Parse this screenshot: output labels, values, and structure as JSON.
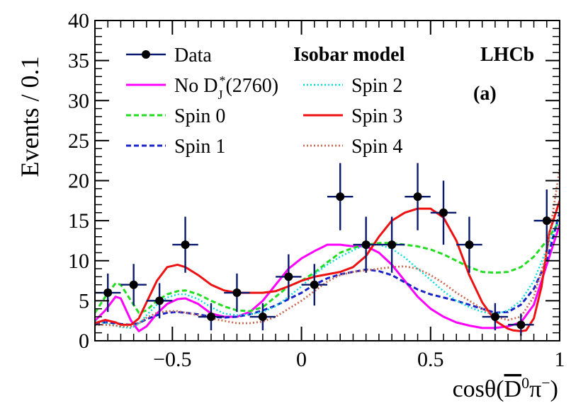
{
  "chart_data": {
    "type": "line",
    "title": "",
    "experiment_label": "LHCb",
    "model_label": "Isobar model",
    "panel_label": "(a)",
    "ylabel": "Events / 0.1",
    "xlabel_parts": {
      "pre": "cosθ(",
      "dbar": "D",
      "dbar_sup": "0",
      "pi": "π",
      "pi_sup": "−",
      "post": ")"
    },
    "xlim": [
      -0.8,
      1.0
    ],
    "ylim": [
      0,
      40
    ],
    "x_ticks": [
      {
        "value": -0.5,
        "label": "−0.5"
      },
      {
        "value": 0,
        "label": "0"
      },
      {
        "value": 0.5,
        "label": "0.5"
      },
      {
        "value": 1,
        "label": "1"
      }
    ],
    "y_ticks": [
      {
        "value": 0,
        "label": "0"
      },
      {
        "value": 5,
        "label": "5"
      },
      {
        "value": 10,
        "label": "10"
      },
      {
        "value": 15,
        "label": "15"
      },
      {
        "value": 20,
        "label": "20"
      },
      {
        "value": 25,
        "label": "25"
      },
      {
        "value": 30,
        "label": "30"
      },
      {
        "value": 35,
        "label": "35"
      },
      {
        "value": 40,
        "label": "40"
      }
    ],
    "data": {
      "name": "Data",
      "color": "#0a1a6e",
      "x_halfwidth": 0.05,
      "points": [
        {
          "x": -0.75,
          "y": 6,
          "err": 2.4
        },
        {
          "x": -0.65,
          "y": 7,
          "err": 2.6
        },
        {
          "x": -0.55,
          "y": 5,
          "err": 2.2
        },
        {
          "x": -0.45,
          "y": 12,
          "err": 3.5
        },
        {
          "x": -0.35,
          "y": 3,
          "err": 1.7
        },
        {
          "x": -0.25,
          "y": 6,
          "err": 2.4
        },
        {
          "x": -0.15,
          "y": 3,
          "err": 1.7
        },
        {
          "x": -0.05,
          "y": 8,
          "err": 2.8
        },
        {
          "x": 0.05,
          "y": 7,
          "err": 2.6
        },
        {
          "x": 0.15,
          "y": 18,
          "err": 4.2
        },
        {
          "x": 0.25,
          "y": 12,
          "err": 3.5
        },
        {
          "x": 0.35,
          "y": 12,
          "err": 3.5
        },
        {
          "x": 0.45,
          "y": 18,
          "err": 4.2
        },
        {
          "x": 0.55,
          "y": 16,
          "err": 4.0
        },
        {
          "x": 0.65,
          "y": 12,
          "err": 3.5
        },
        {
          "x": 0.75,
          "y": 3,
          "err": 1.7
        },
        {
          "x": 0.85,
          "y": 2,
          "err": 1.4
        },
        {
          "x": 0.95,
          "y": 15,
          "err": 3.9
        }
      ]
    },
    "legend_left": [
      {
        "key": "data",
        "label": "Data"
      },
      {
        "key": "nod",
        "label_pre": "No D",
        "label_sub": "J",
        "label_sup": "*",
        "label_post": "(2760)"
      },
      {
        "key": "spin0",
        "label": "Spin 0"
      },
      {
        "key": "spin1",
        "label": "Spin 1"
      }
    ],
    "legend_right": [
      {
        "key": "spin2",
        "label": "Spin 2"
      },
      {
        "key": "spin3",
        "label": "Spin 3"
      },
      {
        "key": "spin4",
        "label": "Spin 4"
      }
    ],
    "series": [
      {
        "key": "nod",
        "name": "No D*J(2760)",
        "color": "#ff00ff",
        "dash": "none",
        "width": 3,
        "x": [
          -0.8,
          -0.76,
          -0.72,
          -0.7,
          -0.66,
          -0.63,
          -0.6,
          -0.56,
          -0.52,
          -0.48,
          -0.45,
          -0.4,
          -0.35,
          -0.3,
          -0.25,
          -0.2,
          -0.15,
          -0.1,
          -0.05,
          0,
          0.05,
          0.1,
          0.15,
          0.2,
          0.25,
          0.3,
          0.35,
          0.4,
          0.45,
          0.5,
          0.55,
          0.6,
          0.65,
          0.7,
          0.75,
          0.8,
          0.85,
          0.9,
          0.95,
          1.0
        ],
        "y": [
          2.5,
          3.8,
          5.5,
          5.3,
          2.5,
          1.2,
          1.8,
          3.4,
          4.6,
          5.2,
          5.3,
          4.6,
          3.4,
          3.0,
          3.0,
          3.6,
          5.0,
          7.0,
          9.0,
          10.3,
          11.2,
          12.0,
          12.0,
          11.8,
          11.8,
          11.0,
          9.5,
          7.5,
          5.5,
          4.0,
          3.0,
          2.3,
          1.9,
          1.6,
          1.6,
          1.8,
          2.3,
          4.5,
          9.5,
          14.5
        ]
      },
      {
        "key": "spin0",
        "name": "Spin 0",
        "color": "#22dd22",
        "dash": "7,4",
        "width": 3,
        "x": [
          -0.8,
          -0.76,
          -0.72,
          -0.7,
          -0.66,
          -0.63,
          -0.6,
          -0.56,
          -0.52,
          -0.48,
          -0.45,
          -0.4,
          -0.35,
          -0.3,
          -0.25,
          -0.2,
          -0.15,
          -0.1,
          -0.05,
          0,
          0.05,
          0.1,
          0.15,
          0.2,
          0.25,
          0.3,
          0.35,
          0.4,
          0.45,
          0.5,
          0.55,
          0.6,
          0.65,
          0.7,
          0.75,
          0.8,
          0.85,
          0.9,
          0.95,
          1.0
        ],
        "y": [
          3.5,
          5.5,
          7.2,
          7.0,
          5.0,
          3.5,
          3.8,
          5.0,
          5.8,
          6.2,
          6.3,
          5.8,
          5.0,
          4.3,
          3.8,
          3.7,
          4.2,
          5.5,
          6.8,
          7.5,
          8.5,
          9.8,
          11.0,
          11.6,
          12.0,
          12.2,
          12.2,
          12.0,
          11.8,
          11.4,
          10.8,
          10.0,
          9.2,
          8.6,
          8.5,
          8.6,
          9.2,
          10.5,
          12.5,
          15.0
        ]
      },
      {
        "key": "spin1",
        "name": "Spin 1",
        "color": "#1a23c8",
        "dash": "7,4",
        "width": 3,
        "x": [
          -0.8,
          -0.76,
          -0.72,
          -0.7,
          -0.66,
          -0.63,
          -0.6,
          -0.56,
          -0.52,
          -0.48,
          -0.45,
          -0.4,
          -0.35,
          -0.3,
          -0.25,
          -0.2,
          -0.15,
          -0.1,
          -0.05,
          0,
          0.05,
          0.1,
          0.15,
          0.2,
          0.25,
          0.3,
          0.35,
          0.4,
          0.45,
          0.5,
          0.55,
          0.6,
          0.65,
          0.7,
          0.75,
          0.8,
          0.85,
          0.9,
          0.95,
          1.0
        ],
        "y": [
          2.2,
          2.3,
          2.2,
          2.1,
          2.0,
          2.2,
          2.7,
          3.2,
          3.5,
          3.6,
          3.5,
          3.3,
          3.0,
          2.9,
          3.0,
          3.3,
          3.8,
          4.4,
          5.2,
          6.0,
          7.0,
          7.8,
          8.3,
          8.6,
          8.9,
          8.7,
          8.2,
          7.3,
          6.4,
          5.8,
          5.4,
          5.0,
          4.5,
          4.0,
          3.5,
          3.6,
          4.5,
          6.5,
          10.0,
          16.0
        ]
      },
      {
        "key": "spin2",
        "name": "Spin 2",
        "color": "#00dddd",
        "dash": "2,3",
        "width": 2.4,
        "x": [
          -0.8,
          -0.76,
          -0.72,
          -0.7,
          -0.66,
          -0.63,
          -0.6,
          -0.56,
          -0.52,
          -0.48,
          -0.45,
          -0.4,
          -0.35,
          -0.3,
          -0.25,
          -0.2,
          -0.15,
          -0.1,
          -0.05,
          0,
          0.05,
          0.1,
          0.15,
          0.2,
          0.25,
          0.3,
          0.35,
          0.4,
          0.45,
          0.5,
          0.55,
          0.6,
          0.65,
          0.7,
          0.75,
          0.8,
          0.85,
          0.9,
          0.95,
          1.0
        ],
        "y": [
          2.5,
          2.2,
          1.9,
          1.7,
          1.6,
          2.1,
          3.2,
          4.5,
          5.4,
          5.8,
          5.8,
          5.2,
          4.2,
          3.4,
          3.2,
          3.3,
          3.6,
          4.3,
          5.5,
          6.8,
          8.3,
          9.5,
          10.5,
          11.3,
          12.0,
          12.0,
          11.5,
          10.4,
          9.0,
          7.6,
          6.2,
          5.0,
          4.2,
          3.6,
          3.3,
          3.8,
          5.0,
          7.5,
          11.5,
          15.5
        ]
      },
      {
        "key": "spin3",
        "name": "Spin 3",
        "color": "#ee1111",
        "dash": "none",
        "width": 3,
        "x": [
          -0.8,
          -0.76,
          -0.72,
          -0.7,
          -0.66,
          -0.63,
          -0.6,
          -0.56,
          -0.52,
          -0.48,
          -0.45,
          -0.4,
          -0.35,
          -0.3,
          -0.25,
          -0.2,
          -0.15,
          -0.1,
          -0.05,
          0,
          0.05,
          0.1,
          0.15,
          0.2,
          0.25,
          0.3,
          0.35,
          0.4,
          0.45,
          0.5,
          0.55,
          0.6,
          0.65,
          0.7,
          0.75,
          0.8,
          0.82,
          0.85,
          0.87,
          0.9,
          0.93,
          0.96,
          1.0
        ],
        "y": [
          2.2,
          2.6,
          2.3,
          2.0,
          2.0,
          2.8,
          4.8,
          7.5,
          9.2,
          9.5,
          9.2,
          8.2,
          7.0,
          6.3,
          6.0,
          6.0,
          6.0,
          6.2,
          6.8,
          7.5,
          8.0,
          8.3,
          8.6,
          9.2,
          10.6,
          13.0,
          15.0,
          16.0,
          16.5,
          16.5,
          15.4,
          12.5,
          8.2,
          4.8,
          2.5,
          1.5,
          1.3,
          1.2,
          1.3,
          2.8,
          6.8,
          13.5,
          17.5
        ]
      },
      {
        "key": "spin4",
        "name": "Spin 4",
        "color": "#c96a52",
        "dash": "2,3",
        "width": 2.8,
        "x": [
          -0.8,
          -0.76,
          -0.72,
          -0.7,
          -0.66,
          -0.63,
          -0.6,
          -0.56,
          -0.52,
          -0.48,
          -0.45,
          -0.4,
          -0.35,
          -0.3,
          -0.25,
          -0.2,
          -0.15,
          -0.1,
          -0.05,
          0,
          0.05,
          0.1,
          0.15,
          0.2,
          0.25,
          0.3,
          0.35,
          0.4,
          0.45,
          0.5,
          0.55,
          0.6,
          0.65,
          0.7,
          0.75,
          0.8,
          0.85,
          0.9,
          0.95,
          1.0
        ],
        "y": [
          2.0,
          2.0,
          1.9,
          1.8,
          1.8,
          2.2,
          2.9,
          3.5,
          3.7,
          3.7,
          3.5,
          3.2,
          2.8,
          2.5,
          2.2,
          2.2,
          2.4,
          3.0,
          4.0,
          5.0,
          6.2,
          7.4,
          8.2,
          8.6,
          8.8,
          9.0,
          9.2,
          9.3,
          9.0,
          8.2,
          7.2,
          6.0,
          5.0,
          4.0,
          3.0,
          2.6,
          3.0,
          5.5,
          11.0,
          21.5
        ]
      }
    ]
  }
}
